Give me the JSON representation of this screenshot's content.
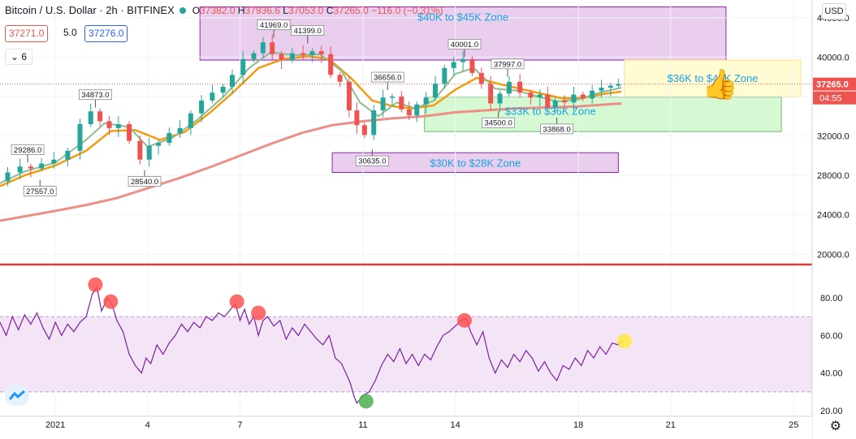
{
  "header": {
    "symbol": "Bitcoin / U.S. Dollar · 2h · BITFINEX",
    "open_label": "O",
    "open": "37382.0",
    "high_label": "H",
    "high": "37936.6",
    "low_label": "L",
    "low": "37053.0",
    "close_label": "C",
    "close": "37265.0",
    "change": "−116.0 (−0.31%)"
  },
  "quotes": {
    "bid": "37271.0",
    "spread": "5.0",
    "ask": "37276.0"
  },
  "indicators_toggle": "6",
  "currency": "USD",
  "price_tag": {
    "price": "37265.0",
    "countdown": "04:55"
  },
  "colors": {
    "up": "#26a69a",
    "down": "#ef5350",
    "ema_fast": "#8fbc8f",
    "ema_mid": "#f39c12",
    "ema_slow": "#ec8f86",
    "rsi_line": "#7b1fa2",
    "rsi_band": "#f3e5f5",
    "zone_purple": "#e1bee7",
    "zone_yellow": "#fff9c4",
    "zone_green": "#c8f7c5",
    "zone_text": "#1aa3e0",
    "separator": "#e53935",
    "marker_red": "#ff5252",
    "marker_green": "#4caf50",
    "marker_yellow": "#ffeb3b"
  },
  "chart_data": [
    {
      "type": "candlestick",
      "title": "",
      "y_ticks": [
        20000,
        24000,
        28000,
        32000,
        36000,
        40000,
        44000
      ],
      "y_tick_labels": [
        "20000.0",
        "24000.0",
        "28000.0",
        "32000.0",
        "36000.0",
        "40000.0",
        "44000.0"
      ],
      "ylim": [
        19200,
        45800
      ],
      "x_ticks": [
        {
          "day": 1,
          "label": "2021"
        },
        {
          "day": 4,
          "label": "4"
        },
        {
          "day": 7,
          "label": "7"
        },
        {
          "day": 11,
          "label": "11"
        },
        {
          "day": 14,
          "label": "14"
        },
        {
          "day": 18,
          "label": "18"
        },
        {
          "day": 21,
          "label": "21"
        },
        {
          "day": 25,
          "label": "25"
        }
      ],
      "xlim": [
        -0.8,
        25.6
      ],
      "close_series": [
        [
          -0.8,
          27400
        ],
        [
          -0.3,
          28300
        ],
        [
          0.0,
          28900
        ],
        [
          0.4,
          28700
        ],
        [
          0.7,
          29200
        ],
        [
          1.2,
          29600
        ],
        [
          1.6,
          30500
        ],
        [
          2.0,
          33200
        ],
        [
          2.3,
          34500
        ],
        [
          2.6,
          33500
        ],
        [
          2.9,
          32800
        ],
        [
          3.2,
          33200
        ],
        [
          3.6,
          31500
        ],
        [
          3.9,
          29600
        ],
        [
          4.2,
          31000
        ],
        [
          4.5,
          31300
        ],
        [
          4.9,
          32300
        ],
        [
          5.2,
          32800
        ],
        [
          5.6,
          34300
        ],
        [
          5.9,
          35600
        ],
        [
          6.3,
          36400
        ],
        [
          6.6,
          37000
        ],
        [
          6.9,
          38200
        ],
        [
          7.3,
          39800
        ],
        [
          7.6,
          40400
        ],
        [
          7.9,
          41500
        ],
        [
          8.2,
          40300
        ],
        [
          8.5,
          39700
        ],
        [
          8.9,
          40400
        ],
        [
          9.2,
          40200
        ],
        [
          9.5,
          40600
        ],
        [
          9.8,
          40300
        ],
        [
          10.1,
          38200
        ],
        [
          10.4,
          37500
        ],
        [
          10.7,
          34600
        ],
        [
          10.9,
          33100
        ],
        [
          11.2,
          32100
        ],
        [
          11.5,
          34600
        ],
        [
          11.8,
          35900
        ],
        [
          12.1,
          36000
        ],
        [
          12.4,
          34700
        ],
        [
          12.6,
          34100
        ],
        [
          12.9,
          35200
        ],
        [
          13.2,
          35900
        ],
        [
          13.5,
          37300
        ],
        [
          13.8,
          38900
        ],
        [
          14.1,
          39500
        ],
        [
          14.4,
          39800
        ],
        [
          14.7,
          38400
        ],
        [
          15.0,
          37300
        ],
        [
          15.3,
          35300
        ],
        [
          15.6,
          36300
        ],
        [
          15.9,
          37500
        ],
        [
          16.3,
          36400
        ],
        [
          16.6,
          35900
        ],
        [
          16.9,
          36200
        ],
        [
          17.1,
          34900
        ],
        [
          17.4,
          35600
        ],
        [
          17.7,
          35400
        ],
        [
          18.0,
          36200
        ],
        [
          18.3,
          35800
        ],
        [
          18.6,
          36600
        ],
        [
          18.9,
          36900
        ],
        [
          19.2,
          37100
        ],
        [
          19.4,
          37265
        ]
      ],
      "ema_fast": [
        [
          -0.8,
          27200
        ],
        [
          0.0,
          28400
        ],
        [
          1.0,
          29300
        ],
        [
          2.0,
          31600
        ],
        [
          2.6,
          33300
        ],
        [
          3.4,
          32900
        ],
        [
          4.0,
          30900
        ],
        [
          4.8,
          31800
        ],
        [
          5.6,
          33600
        ],
        [
          6.5,
          36100
        ],
        [
          7.3,
          38900
        ],
        [
          8.0,
          40500
        ],
        [
          8.8,
          40200
        ],
        [
          9.6,
          40300
        ],
        [
          10.3,
          38600
        ],
        [
          10.9,
          35400
        ],
        [
          11.5,
          34000
        ],
        [
          12.1,
          35400
        ],
        [
          12.7,
          34800
        ],
        [
          13.3,
          35600
        ],
        [
          14.0,
          38300
        ],
        [
          14.6,
          38900
        ],
        [
          15.3,
          36800
        ],
        [
          16.0,
          36600
        ],
        [
          16.7,
          36000
        ],
        [
          17.3,
          35500
        ],
        [
          18.0,
          35700
        ],
        [
          18.7,
          36400
        ],
        [
          19.4,
          36900
        ]
      ],
      "ema_mid": [
        [
          -0.8,
          26900
        ],
        [
          0.0,
          28000
        ],
        [
          1.0,
          29000
        ],
        [
          2.0,
          30500
        ],
        [
          2.8,
          32500
        ],
        [
          3.6,
          32600
        ],
        [
          4.4,
          31600
        ],
        [
          5.2,
          32400
        ],
        [
          6.0,
          34300
        ],
        [
          6.8,
          36500
        ],
        [
          7.6,
          38900
        ],
        [
          8.4,
          39800
        ],
        [
          9.2,
          40100
        ],
        [
          9.9,
          39800
        ],
        [
          10.6,
          37900
        ],
        [
          11.3,
          35600
        ],
        [
          12.0,
          35000
        ],
        [
          12.6,
          34800
        ],
        [
          13.3,
          35100
        ],
        [
          14.0,
          36700
        ],
        [
          14.7,
          37900
        ],
        [
          15.4,
          37300
        ],
        [
          16.1,
          36800
        ],
        [
          16.8,
          36300
        ],
        [
          17.5,
          35800
        ],
        [
          18.2,
          35900
        ],
        [
          18.9,
          36300
        ],
        [
          19.4,
          36500
        ]
      ],
      "ema_slow": [
        [
          -0.8,
          23400
        ],
        [
          1.0,
          24400
        ],
        [
          2.0,
          25000
        ],
        [
          3.0,
          25700
        ],
        [
          4.0,
          26700
        ],
        [
          5.0,
          27700
        ],
        [
          6.0,
          28800
        ],
        [
          7.0,
          30000
        ],
        [
          8.0,
          31200
        ],
        [
          9.0,
          32300
        ],
        [
          10.0,
          33100
        ],
        [
          11.0,
          33500
        ],
        [
          12.0,
          33800
        ],
        [
          13.0,
          34000
        ],
        [
          14.0,
          34400
        ],
        [
          15.0,
          34600
        ],
        [
          16.0,
          34800
        ],
        [
          17.0,
          34900
        ],
        [
          18.0,
          35000
        ],
        [
          19.4,
          35300
        ]
      ],
      "zones": [
        {
          "label": "$40K to $45K Zone",
          "x0": 5.7,
          "x1": 22.8,
          "y0": 39700,
          "y1": 45100,
          "fill": "#e1bee7"
        },
        {
          "label": "$36K to $40K Zone",
          "x0": 19.5,
          "x1": 25.4,
          "y0": 35950,
          "y1": 39700,
          "fill": "#fff9c4"
        },
        {
          "label": "$33K to $36K Zone",
          "x0": 13.0,
          "x1": 24.6,
          "y0": 32450,
          "y1": 35950,
          "fill": "#c8f7c5"
        },
        {
          "label": "$30K to $28K Zone",
          "x0": 10.0,
          "x1": 19.3,
          "y0": 28300,
          "y1": 30300,
          "fill": "#e1bee7"
        }
      ],
      "annotations": [
        {
          "text": "29286.0",
          "x": 0.1,
          "y": 29286,
          "side": "above"
        },
        {
          "text": "27557.0",
          "x": 0.5,
          "y": 27557,
          "side": "below"
        },
        {
          "text": "34873.0",
          "x": 2.3,
          "y": 34873,
          "side": "above"
        },
        {
          "text": "28540.0",
          "x": 3.9,
          "y": 28540,
          "side": "below"
        },
        {
          "text": "41969.0",
          "x": 8.1,
          "y": 41969,
          "side": "above"
        },
        {
          "text": "41399.0",
          "x": 9.2,
          "y": 41399,
          "side": "above"
        },
        {
          "text": "36656.0",
          "x": 11.8,
          "y": 36656,
          "side": "above"
        },
        {
          "text": "30635.0",
          "x": 11.3,
          "y": 30635,
          "side": "below"
        },
        {
          "text": "40001.0",
          "x": 14.3,
          "y": 40001,
          "side": "above"
        },
        {
          "text": "37997.0",
          "x": 15.7,
          "y": 37997,
          "side": "above"
        },
        {
          "text": "34500.0",
          "x": 15.4,
          "y": 34500,
          "side": "below"
        },
        {
          "text": "33868.0",
          "x": 17.3,
          "y": 33868,
          "side": "below"
        }
      ],
      "last_price_line": 37265
    },
    {
      "type": "line",
      "title": "",
      "y_ticks": [
        20,
        40,
        60,
        80
      ],
      "y_tick_labels": [
        "20.00",
        "40.00",
        "60.00",
        "80.00"
      ],
      "ylim": [
        17,
        96
      ],
      "band": [
        30,
        70
      ],
      "rsi": [
        [
          -0.8,
          67
        ],
        [
          -0.6,
          60
        ],
        [
          -0.4,
          70
        ],
        [
          -0.2,
          63
        ],
        [
          0.0,
          71
        ],
        [
          0.2,
          66
        ],
        [
          0.4,
          72
        ],
        [
          0.6,
          64
        ],
        [
          0.8,
          58
        ],
        [
          1.0,
          67
        ],
        [
          1.2,
          60
        ],
        [
          1.4,
          66
        ],
        [
          1.6,
          62
        ],
        [
          1.8,
          67
        ],
        [
          2.0,
          70
        ],
        [
          2.2,
          82
        ],
        [
          2.35,
          86
        ],
        [
          2.5,
          73
        ],
        [
          2.7,
          80
        ],
        [
          2.85,
          76
        ],
        [
          3.0,
          68
        ],
        [
          3.2,
          62
        ],
        [
          3.4,
          50
        ],
        [
          3.6,
          44
        ],
        [
          3.8,
          40
        ],
        [
          3.95,
          48
        ],
        [
          4.1,
          45
        ],
        [
          4.3,
          55
        ],
        [
          4.5,
          50
        ],
        [
          4.7,
          56
        ],
        [
          4.9,
          60
        ],
        [
          5.1,
          66
        ],
        [
          5.3,
          62
        ],
        [
          5.5,
          67
        ],
        [
          5.7,
          64
        ],
        [
          5.9,
          70
        ],
        [
          6.1,
          68
        ],
        [
          6.3,
          72
        ],
        [
          6.5,
          70
        ],
        [
          6.7,
          74
        ],
        [
          6.85,
          77
        ],
        [
          7.0,
          68
        ],
        [
          7.15,
          74
        ],
        [
          7.3,
          66
        ],
        [
          7.45,
          70
        ],
        [
          7.6,
          60
        ],
        [
          7.75,
          68
        ],
        [
          7.9,
          70
        ],
        [
          8.1,
          65
        ],
        [
          8.3,
          68
        ],
        [
          8.5,
          58
        ],
        [
          8.7,
          64
        ],
        [
          8.9,
          60
        ],
        [
          9.1,
          66
        ],
        [
          9.3,
          62
        ],
        [
          9.5,
          58
        ],
        [
          9.7,
          55
        ],
        [
          9.9,
          60
        ],
        [
          10.1,
          48
        ],
        [
          10.3,
          45
        ],
        [
          10.5,
          38
        ],
        [
          10.6,
          34
        ],
        [
          10.7,
          28
        ],
        [
          10.8,
          24
        ],
        [
          10.9,
          26
        ],
        [
          11.0,
          28
        ],
        [
          11.2,
          30
        ],
        [
          11.4,
          36
        ],
        [
          11.6,
          44
        ],
        [
          11.8,
          50
        ],
        [
          12.0,
          46
        ],
        [
          12.2,
          53
        ],
        [
          12.4,
          45
        ],
        [
          12.6,
          50
        ],
        [
          12.8,
          44
        ],
        [
          13.0,
          50
        ],
        [
          13.2,
          47
        ],
        [
          13.4,
          54
        ],
        [
          13.6,
          60
        ],
        [
          13.8,
          62
        ],
        [
          14.0,
          65
        ],
        [
          14.2,
          68
        ],
        [
          14.35,
          69
        ],
        [
          14.5,
          62
        ],
        [
          14.7,
          55
        ],
        [
          14.9,
          62
        ],
        [
          15.1,
          48
        ],
        [
          15.3,
          40
        ],
        [
          15.5,
          47
        ],
        [
          15.7,
          43
        ],
        [
          15.9,
          50
        ],
        [
          16.1,
          46
        ],
        [
          16.3,
          52
        ],
        [
          16.5,
          48
        ],
        [
          16.7,
          41
        ],
        [
          16.9,
          46
        ],
        [
          17.1,
          40
        ],
        [
          17.3,
          36
        ],
        [
          17.5,
          44
        ],
        [
          17.7,
          42
        ],
        [
          17.9,
          48
        ],
        [
          18.1,
          44
        ],
        [
          18.3,
          52
        ],
        [
          18.5,
          48
        ],
        [
          18.7,
          54
        ],
        [
          18.9,
          50
        ],
        [
          19.1,
          56
        ],
        [
          19.3,
          55
        ],
        [
          19.4,
          57
        ]
      ],
      "markers": [
        {
          "x": 2.3,
          "y": 87,
          "color": "#ff5252"
        },
        {
          "x": 2.8,
          "y": 78,
          "color": "#ff5252"
        },
        {
          "x": 6.9,
          "y": 78,
          "color": "#ff5252"
        },
        {
          "x": 7.6,
          "y": 72,
          "color": "#ff5252"
        },
        {
          "x": 11.1,
          "y": 25,
          "color": "#4caf50"
        },
        {
          "x": 14.3,
          "y": 68,
          "color": "#ff5252"
        },
        {
          "x": 19.5,
          "y": 57,
          "color": "#ffeb3b"
        }
      ]
    }
  ]
}
